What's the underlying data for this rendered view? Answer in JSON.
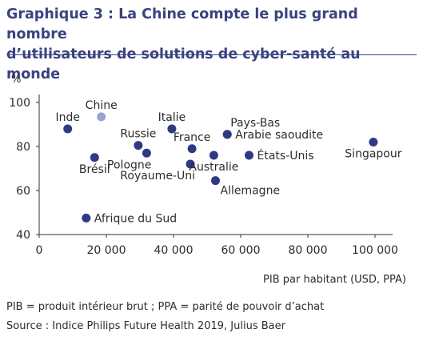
{
  "title_line1": "Graphique 3 : La Chine compte le plus grand nombre",
  "title_line2": "d’utilisateurs de solutions de cyber-santé au monde",
  "note": "PIB = produit intérieur brut ; PPA = parité de pouvoir d’achat",
  "source": "Source : Indice Philips Future Health 2019, Julius Baer",
  "colors": {
    "title": "#3a4380",
    "point": "#2f3a84",
    "highlight": "#9aa3cc",
    "text": "#2c2c2c"
  },
  "chart_data": {
    "type": "scatter",
    "title": "Graphique 3 : La Chine compte le plus grand nombre d’utilisateurs de solutions de cyber-santé au monde",
    "xlabel": "PIB par habitant (USD, PPA)",
    "ylabel": "%",
    "xlim": [
      0,
      100000
    ],
    "ylim": [
      40,
      100
    ],
    "x_ticks": [
      0,
      20000,
      40000,
      60000,
      80000,
      100000
    ],
    "x_tick_labels": [
      "0",
      "20 000",
      "40 000",
      "60 000",
      "80 000",
      "100 000"
    ],
    "y_ticks": [
      40,
      60,
      80,
      100
    ],
    "y_tick_labels": [
      "40",
      "60",
      "80",
      "100"
    ],
    "grid": false,
    "points": [
      {
        "label": "Inde",
        "x": 8500,
        "y": 88,
        "highlight": false,
        "label_pos": "above"
      },
      {
        "label": "Chine",
        "x": 18500,
        "y": 93.5,
        "highlight": true,
        "label_pos": "above"
      },
      {
        "label": "Brésil",
        "x": 16500,
        "y": 75,
        "highlight": false,
        "label_pos": "below"
      },
      {
        "label": "Russie",
        "x": 29500,
        "y": 80.5,
        "highlight": false,
        "label_pos": "above"
      },
      {
        "label": "Pologne",
        "x": 32000,
        "y": 77,
        "highlight": false,
        "label_pos": "below-left"
      },
      {
        "label": "Italie",
        "x": 39500,
        "y": 88,
        "highlight": false,
        "label_pos": "above"
      },
      {
        "label": "France",
        "x": 45500,
        "y": 79,
        "highlight": false,
        "label_pos": "above"
      },
      {
        "label": "Royaume-Uni",
        "x": 45000,
        "y": 72,
        "highlight": false,
        "label_pos": "below-left"
      },
      {
        "label": "Australie",
        "x": 52000,
        "y": 76,
        "highlight": false,
        "label_pos": "below"
      },
      {
        "label": "Allemagne",
        "x": 52500,
        "y": 64.5,
        "highlight": false,
        "label_pos": "right-below"
      },
      {
        "label": "Pays-Bas",
        "x": 56000,
        "y": 85.5,
        "highlight": false,
        "label_pos": "above-right"
      },
      {
        "label": "Arabie saoudite",
        "x": 56000,
        "y": 85.5,
        "highlight": false,
        "label_pos": "right"
      },
      {
        "label": "États-Unis",
        "x": 62500,
        "y": 76,
        "highlight": false,
        "label_pos": "right"
      },
      {
        "label": "Singapour",
        "x": 99500,
        "y": 82,
        "highlight": false,
        "label_pos": "below"
      },
      {
        "label": "Afrique du Sud",
        "x": 14000,
        "y": 47.5,
        "highlight": false,
        "label_pos": "right"
      }
    ]
  }
}
